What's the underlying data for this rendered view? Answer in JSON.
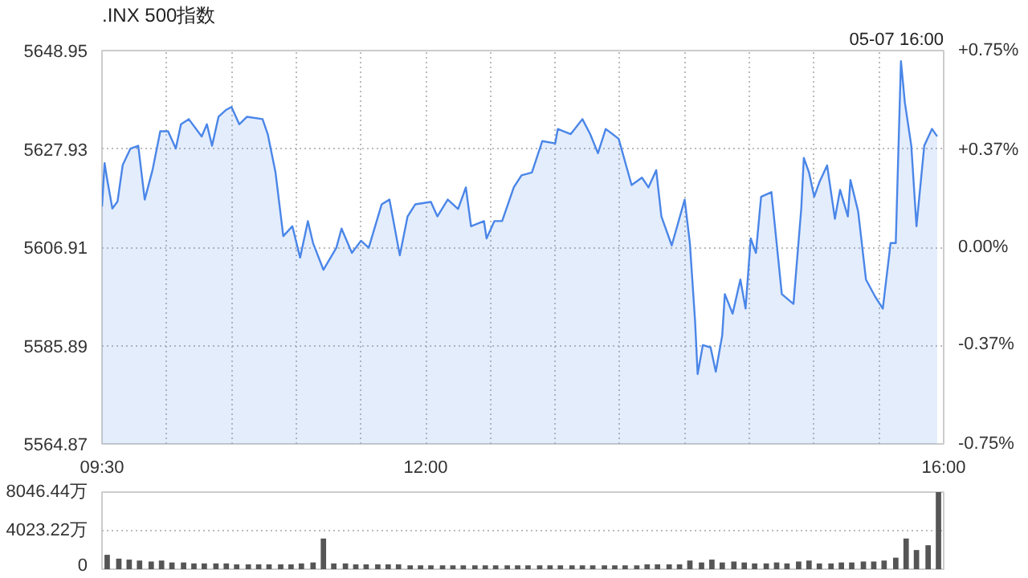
{
  "chart_data": [
    {
      "type": "area",
      "title": ".INX 500指数",
      "annotations": [
        "05-07 16:00"
      ],
      "x": [
        9.5,
        9.52,
        9.54,
        9.58,
        9.62,
        9.66,
        9.72,
        9.78,
        9.83,
        9.89,
        9.95,
        10.01,
        10.07,
        10.11,
        10.17,
        10.27,
        10.31,
        10.35,
        10.4,
        10.46,
        10.5,
        10.56,
        10.62,
        10.74,
        10.78,
        10.84,
        10.9,
        10.97,
        11.03,
        11.09,
        11.13,
        11.21,
        11.31,
        11.35,
        11.43,
        11.5,
        11.56,
        11.66,
        11.72,
        11.8,
        11.86,
        11.92,
        12.04,
        12.09,
        12.17,
        12.25,
        12.31,
        12.35,
        12.45,
        12.47,
        12.53,
        12.59,
        12.68,
        12.74,
        12.82,
        12.9,
        13.0,
        13.02,
        13.12,
        13.21,
        13.27,
        13.33,
        13.39,
        13.49,
        13.59,
        13.67,
        13.72,
        13.78,
        13.82,
        13.9,
        14.0,
        14.04,
        14.08,
        14.1,
        14.14,
        14.2,
        14.24,
        14.29,
        14.31,
        14.37,
        14.43,
        14.47,
        14.51,
        14.55,
        14.59,
        14.67,
        14.75,
        14.84,
        14.9,
        14.92,
        14.96,
        15.0,
        15.04,
        15.1,
        15.16,
        15.2,
        15.26,
        15.28,
        15.34,
        15.4,
        15.47,
        15.53,
        15.59,
        15.63,
        15.67,
        15.7,
        15.75,
        15.79,
        15.85,
        15.91,
        15.95
      ],
      "series": [
        {
          "color": "#4a86e8",
          "values": [
            5615.6,
            5624.9,
            5621.4,
            5615.2,
            5616.7,
            5624.5,
            5628.0,
            5628.6,
            5617.1,
            5623.4,
            5631.7,
            5631.7,
            5628.0,
            5633.2,
            5634.3,
            5630.6,
            5633.2,
            5628.6,
            5634.8,
            5636.3,
            5636.9,
            5633.2,
            5634.8,
            5634.3,
            5631.1,
            5622.9,
            5609.3,
            5611.4,
            5604.7,
            5612.5,
            5607.8,
            5602.1,
            5606.8,
            5610.9,
            5605.7,
            5608.3,
            5606.8,
            5616.1,
            5617.1,
            5605.2,
            5613.5,
            5616.1,
            5616.6,
            5613.5,
            5617.1,
            5615.1,
            5619.7,
            5611.4,
            5612.5,
            5608.8,
            5612.5,
            5612.5,
            5619.7,
            5622.3,
            5622.9,
            5629.6,
            5629.1,
            5632.2,
            5631.1,
            5634.3,
            5631.1,
            5627.0,
            5632.2,
            5630.1,
            5620.2,
            5621.8,
            5619.7,
            5623.4,
            5613.5,
            5607.3,
            5617.1,
            5607.8,
            5591.2,
            5579.8,
            5586.0,
            5585.5,
            5580.3,
            5588.1,
            5596.9,
            5592.7,
            5600.0,
            5593.8,
            5608.8,
            5605.7,
            5617.7,
            5618.7,
            5596.9,
            5594.8,
            5615.1,
            5626.0,
            5622.9,
            5617.7,
            5620.8,
            5624.4,
            5613.0,
            5619.2,
            5613.5,
            5621.3,
            5614.5,
            5600.0,
            5596.4,
            5593.8,
            5607.8,
            5607.8,
            5646.7,
            5637.9,
            5628.6,
            5611.4,
            5628.6,
            5632.2,
            5630.6
          ]
        }
      ],
      "xlim": [
        9.5,
        16
      ],
      "xticks": [
        {
          "value": 9.5,
          "label": "09:30"
        },
        {
          "value": 10,
          "label": null
        },
        {
          "value": 10.5,
          "label": null
        },
        {
          "value": 11,
          "label": null
        },
        {
          "value": 11.5,
          "label": null
        },
        {
          "value": 12,
          "label": "12:00"
        },
        {
          "value": 12.5,
          "label": null
        },
        {
          "value": 13,
          "label": null
        },
        {
          "value": 13.5,
          "label": null
        },
        {
          "value": 14,
          "label": null
        },
        {
          "value": 14.5,
          "label": null
        },
        {
          "value": 15,
          "label": null
        },
        {
          "value": 15.5,
          "label": null
        },
        {
          "value": 16,
          "label": "16:00"
        }
      ],
      "ylim": [
        5564.87,
        5648.95
      ],
      "yticks": [
        5564.87,
        5585.89,
        5606.91,
        5627.93,
        5648.95
      ],
      "y2lim": [
        -0.75,
        0.75
      ],
      "y2ticks": [
        {
          "value": -0.75,
          "label": "-0.75%"
        },
        {
          "value": -0.37,
          "label": "-0.37%"
        },
        {
          "value": 0,
          "label": "0.00%"
        },
        {
          "value": 0.37,
          "label": "+0.37%"
        },
        {
          "value": 0.75,
          "label": "+0.75%"
        }
      ],
      "grid": true
    },
    {
      "type": "bar",
      "x": [
        9.54,
        9.63,
        9.71,
        9.79,
        9.88,
        9.96,
        10.04,
        10.13,
        10.21,
        10.29,
        10.38,
        10.46,
        10.54,
        10.63,
        10.71,
        10.79,
        10.88,
        10.96,
        11.04,
        11.13,
        11.21,
        11.29,
        11.38,
        11.46,
        11.54,
        11.63,
        11.71,
        11.79,
        11.88,
        11.96,
        12.04,
        12.13,
        12.21,
        12.29,
        12.38,
        12.46,
        12.54,
        12.63,
        12.71,
        12.79,
        12.88,
        12.96,
        13.04,
        13.13,
        13.21,
        13.29,
        13.38,
        13.46,
        13.54,
        13.63,
        13.71,
        13.79,
        13.88,
        13.96,
        14.04,
        14.13,
        14.21,
        14.29,
        14.38,
        14.46,
        14.54,
        14.63,
        14.71,
        14.79,
        14.88,
        14.96,
        15.04,
        15.13,
        15.21,
        15.29,
        15.38,
        15.46,
        15.54,
        15.63,
        15.71,
        15.79,
        15.88,
        15.96
      ],
      "series": [
        {
          "color": "#555555",
          "values": [
            1500,
            1100,
            1000,
            900,
            800,
            900,
            700,
            700,
            600,
            600,
            600,
            600,
            500,
            500,
            500,
            500,
            500,
            500,
            600,
            700,
            3200,
            600,
            600,
            500,
            500,
            500,
            500,
            500,
            400,
            400,
            400,
            400,
            400,
            400,
            400,
            400,
            400,
            400,
            400,
            400,
            400,
            400,
            400,
            400,
            400,
            400,
            400,
            400,
            400,
            400,
            500,
            500,
            500,
            500,
            900,
            700,
            1000,
            700,
            800,
            700,
            600,
            600,
            700,
            600,
            800,
            900,
            600,
            600,
            700,
            700,
            800,
            800,
            900,
            1200,
            3200,
            2000,
            2500,
            8046.44
          ]
        }
      ],
      "xlim": [
        9.5,
        16
      ],
      "ylim": [
        0,
        8046.44
      ],
      "yticks": [
        0,
        {
          "value": 4023.22,
          "label": "4023.22万"
        },
        {
          "value": 8046.44,
          "label": "8046.44万"
        }
      ],
      "tick_labels": "y",
      "grid": "y"
    }
  ]
}
